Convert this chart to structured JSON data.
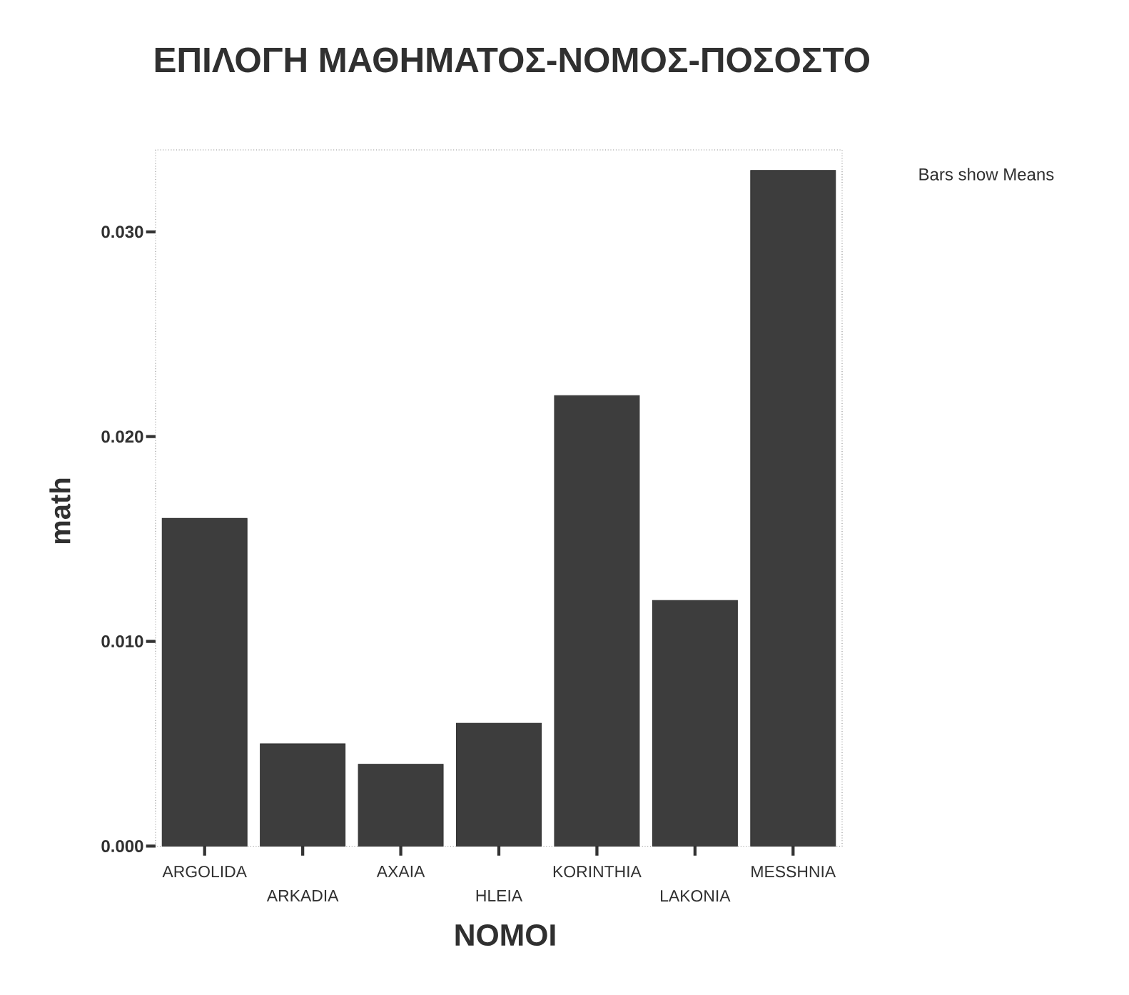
{
  "chart_data": {
    "type": "bar",
    "title": "ΕΠΙΛΟΓΗ ΜΑΘΗΜΑΤΟΣ-ΝΟΜΟΣ-ΠΟΣΟΣΤΟ",
    "xlabel": "NOMOI",
    "ylabel": "math",
    "categories": [
      "ARGOLIDA",
      "ARKADIA",
      "AXAIA",
      "HLEIA",
      "KORINTHIA",
      "LAKONIA",
      "MESSHNIA"
    ],
    "values": [
      0.016,
      0.005,
      0.004,
      0.006,
      0.022,
      0.012,
      0.033
    ],
    "color": "#3d3d3d",
    "ylim": [
      0,
      0.034
    ],
    "yticks": [
      {
        "value": 0,
        "label": "0.000"
      },
      {
        "value": 0.01,
        "label": "0.010"
      },
      {
        "value": 0.02,
        "label": "0.020"
      },
      {
        "value": 0.03,
        "label": "0.030"
      }
    ],
    "annotations": [
      "Bars show Means"
    ]
  }
}
